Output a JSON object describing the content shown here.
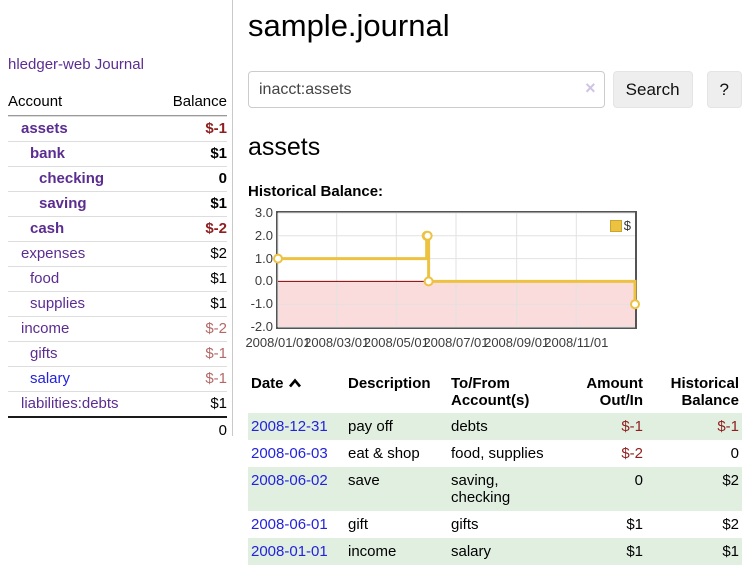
{
  "app": {
    "brand": "hledger-web"
  },
  "sidebar": {
    "nav": {
      "journal": "Journal"
    },
    "accounts_header": {
      "account": "Account",
      "balance": "Balance"
    },
    "accounts": [
      {
        "name": "assets",
        "balance": "$-1"
      },
      {
        "name": "bank",
        "balance": "$1"
      },
      {
        "name": "checking",
        "balance": "0"
      },
      {
        "name": "saving",
        "balance": "$1"
      },
      {
        "name": "cash",
        "balance": "$-2"
      },
      {
        "name": "expenses",
        "balance": "$2"
      },
      {
        "name": "food",
        "balance": "$1"
      },
      {
        "name": "supplies",
        "balance": "$1"
      },
      {
        "name": "income",
        "balance": "$-2"
      },
      {
        "name": "gifts",
        "balance": "$-1"
      },
      {
        "name": "salary",
        "balance": "$-1"
      },
      {
        "name": "liabilities:debts",
        "balance": "$1"
      }
    ],
    "total": "0"
  },
  "main": {
    "title": "sample.journal",
    "search": {
      "value": "inacct:assets",
      "clear_glyph": "×",
      "clear_icon": "x-clear-icon",
      "button_label": "Search",
      "help_label": "?"
    },
    "account_heading": "assets",
    "chart_label": "Historical Balance:"
  },
  "chart_data": {
    "type": "line",
    "style": "steps",
    "title": "Historical Balance",
    "legend_position": "top-right",
    "grid": true,
    "line_color": "#edc240",
    "marker_fill": "#ffffff",
    "negative_region_color": "#fbdcdc",
    "zero_line_color": "#8b0000",
    "xlim_days": [
      0,
      365
    ],
    "ylim": [
      -2,
      3
    ],
    "series": [
      {
        "name": "$",
        "points": [
          {
            "date": "2008-01-01",
            "day": 0,
            "value": 1
          },
          {
            "date": "2008-06-01",
            "day": 152,
            "value": 2
          },
          {
            "date": "2008-06-02",
            "day": 153,
            "value": 2
          },
          {
            "date": "2008-06-03",
            "day": 154,
            "value": 0
          },
          {
            "date": "2008-12-31",
            "day": 365,
            "value": -1
          }
        ]
      }
    ],
    "x_ticks": [
      {
        "day": 0,
        "label": "2008/01/01"
      },
      {
        "day": 60,
        "label": "2008/03/01"
      },
      {
        "day": 121,
        "label": "2008/05/01"
      },
      {
        "day": 182,
        "label": "2008/07/01"
      },
      {
        "day": 244,
        "label": "2008/09/01"
      },
      {
        "day": 305,
        "label": "2008/11/01"
      }
    ],
    "y_ticks": [
      {
        "value": 3,
        "label": "3.0"
      },
      {
        "value": 2,
        "label": "2.0"
      },
      {
        "value": 1,
        "label": "1.0"
      },
      {
        "value": 0,
        "label": "0.0"
      },
      {
        "value": -1,
        "label": "-1.0"
      },
      {
        "value": -2,
        "label": "-2.0"
      }
    ]
  },
  "register": {
    "columns": [
      "Date",
      "Description",
      "To/From Account(s)",
      "Amount Out/In",
      "Historical Balance"
    ],
    "sort_icon": "chevron-up-icon",
    "rows": [
      {
        "date": "2008-12-31",
        "description": "pay off",
        "accounts": "debts",
        "amount": "$-1",
        "balance": "$-1"
      },
      {
        "date": "2008-06-03",
        "description": "eat & shop",
        "accounts": "food, supplies",
        "amount": "$-2",
        "balance": "0"
      },
      {
        "date": "2008-06-02",
        "description": "save",
        "accounts": "saving, checking",
        "amount": "0",
        "balance": "$2"
      },
      {
        "date": "2008-06-01",
        "description": "gift",
        "accounts": "gifts",
        "amount": "$1",
        "balance": "$2"
      },
      {
        "date": "2008-01-01",
        "description": "income",
        "accounts": "salary",
        "amount": "$1",
        "balance": "$1"
      }
    ]
  }
}
